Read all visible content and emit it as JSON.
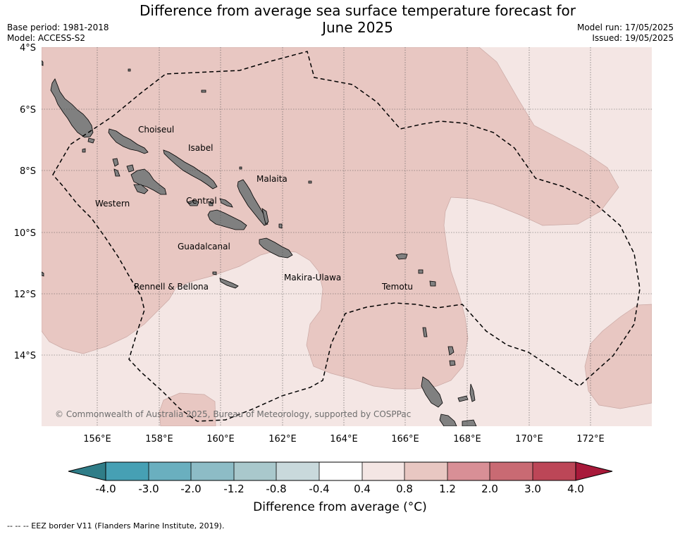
{
  "title": "Difference from average sea surface temperature forecast for June 2025",
  "title_line1": "Difference from average sea surface temperature forecast for",
  "title_line2": "June 2025",
  "meta_left": {
    "base_period": "Base period: 1981-2018",
    "model": "Model: ACCESS-S2"
  },
  "meta_right": {
    "model_run": "Model run: 17/05/2025",
    "issued": "Issued: 19/05/2025"
  },
  "map": {
    "lat_labels": [
      "4°S",
      "6°S",
      "8°S",
      "10°S",
      "12°S",
      "14°S"
    ],
    "lon_labels": [
      "156°E",
      "158°E",
      "160°E",
      "162°E",
      "164°E",
      "166°E",
      "168°E",
      "170°E",
      "172°E"
    ],
    "places": [
      "Choiseul",
      "Isabel",
      "Malaita",
      "Western",
      "Central",
      "Guadalcanal",
      "Rennell & Bellona",
      "Makira-Ulawa",
      "Temotu"
    ],
    "copyright": "© Commonwealth of Australia 2025, Bureau of Meteorology, supported by COSPPac",
    "colors": {
      "land": "#808080",
      "class_0_4_0_8": "#f4e6e4",
      "class_0_8_1_2": "#e8c7c2",
      "eez": "#000000"
    }
  },
  "colorbar": {
    "label": "Difference from average (°C)",
    "ticks": [
      "-4.0",
      "-3.0",
      "-2.0",
      "-1.2",
      "-0.8",
      "-0.4",
      "0.4",
      "0.8",
      "1.2",
      "2.0",
      "3.0",
      "4.0"
    ],
    "colors": [
      "#2f7d88",
      "#46a0b4",
      "#6aafbf",
      "#8dbcc6",
      "#a9c8cc",
      "#c9d9dc",
      "#ffffff",
      "#f4e6e4",
      "#e8c7c2",
      "#d88f96",
      "#c96a73",
      "#bc4657",
      "#a8193a"
    ]
  },
  "legend_note": "--  --  -- EEZ border V11 (Flanders Marine Institute, 2019)."
}
